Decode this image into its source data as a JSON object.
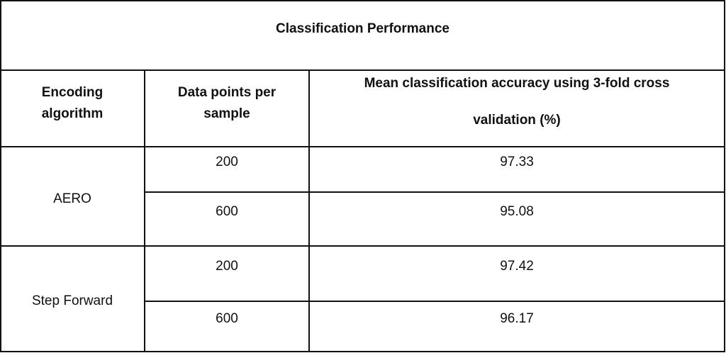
{
  "header": {
    "title": "Classification Performance"
  },
  "table": {
    "columns": [
      "Encoding algorithm",
      "Data points per sample",
      "Mean classification accuracy using 3-fold cross validation (%)"
    ],
    "groups": [
      {
        "algorithm": "AERO",
        "rows": [
          [
            "200",
            "97.33"
          ],
          [
            "600",
            "95.08"
          ]
        ]
      },
      {
        "algorithm": "Step Forward",
        "rows": [
          [
            "200",
            "97.42"
          ],
          [
            "600",
            "96.17"
          ]
        ]
      }
    ]
  }
}
